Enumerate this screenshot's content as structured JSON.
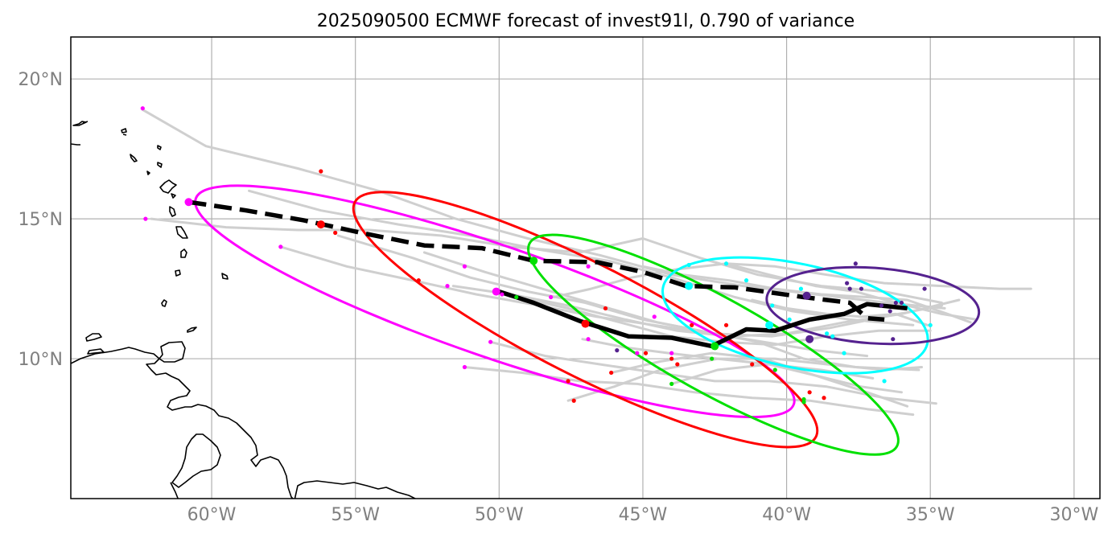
{
  "figure": {
    "title": "2025090500 ECMWF forecast of invest91l, 0.790 of variance"
  },
  "chart_data": {
    "type": "map",
    "title": "2025090500 ECMWF forecast of invest91l, 0.790 of variance",
    "projection": "PlateCarree",
    "extent_lon": [
      -64.9,
      -29.1
    ],
    "extent_lat": [
      5.0,
      21.5
    ],
    "x_ticks": [
      {
        "value": -60,
        "label": "60°W"
      },
      {
        "value": -55,
        "label": "55°W"
      },
      {
        "value": -50,
        "label": "50°W"
      },
      {
        "value": -45,
        "label": "45°W"
      },
      {
        "value": -40,
        "label": "40°W"
      },
      {
        "value": -35,
        "label": "35°W"
      },
      {
        "value": -30,
        "label": "30°W"
      }
    ],
    "y_ticks": [
      {
        "value": 20,
        "label": "20°N"
      },
      {
        "value": 15,
        "label": "15°N"
      },
      {
        "value": 10,
        "label": "10°N"
      }
    ],
    "gridlines": true,
    "colors": {
      "grid": "#b0b0b0",
      "tick_label": "#808080",
      "coast": "#000000",
      "member": "#cfcfcf",
      "mean_track": "#000000"
    },
    "mean_tracks": [
      {
        "name": "mean track (solid)",
        "style": "solid",
        "points": [
          [
            -50.0,
            12.4
          ],
          [
            -48.8,
            12.0
          ],
          [
            -47.2,
            11.35
          ],
          [
            -45.5,
            10.8
          ],
          [
            -44.0,
            10.75
          ],
          [
            -42.6,
            10.45
          ],
          [
            -41.4,
            11.05
          ],
          [
            -40.4,
            11.0
          ],
          [
            -39.2,
            11.4
          ],
          [
            -38.0,
            11.6
          ],
          [
            -37.2,
            11.95
          ],
          [
            -35.8,
            11.8
          ]
        ]
      },
      {
        "name": "mean track (dashed)",
        "style": "dashed",
        "points": [
          [
            -60.8,
            15.6
          ],
          [
            -58.8,
            15.3
          ],
          [
            -56.8,
            14.95
          ],
          [
            -54.8,
            14.5
          ],
          [
            -52.6,
            14.05
          ],
          [
            -50.6,
            13.95
          ],
          [
            -48.8,
            13.5
          ],
          [
            -46.6,
            13.45
          ],
          [
            -45.0,
            13.1
          ],
          [
            -43.5,
            12.6
          ],
          [
            -41.8,
            12.55
          ],
          [
            -39.4,
            12.2
          ],
          [
            -37.8,
            12.0
          ],
          [
            -37.2,
            11.45
          ],
          [
            -36.6,
            11.4
          ]
        ]
      }
    ],
    "ellipses": [
      {
        "color": "#ff00ff",
        "center": [
          -50.15,
          12.05
        ],
        "rx_deg": 11.0,
        "ry_deg": 2.0,
        "angle_deg": -19.0
      },
      {
        "color": "#ff0000",
        "center": [
          -47.0,
          11.4
        ],
        "rx_deg": 9.0,
        "ry_deg": 2.0,
        "angle_deg": -27.0
      },
      {
        "color": "#00e000",
        "center": [
          -42.55,
          10.5
        ],
        "rx_deg": 7.3,
        "ry_deg": 1.7,
        "angle_deg": -29.0
      },
      {
        "color": "#00ffff",
        "center": [
          -39.7,
          11.55
        ],
        "rx_deg": 4.7,
        "ry_deg": 1.85,
        "angle_deg": -12.0
      },
      {
        "color": "#55228f",
        "center": [
          -37.0,
          11.9
        ],
        "rx_deg": 3.7,
        "ry_deg": 1.35,
        "angle_deg": -4.0
      }
    ],
    "ellipse_centers": [
      {
        "color": "#ff00ff",
        "lon": -60.8,
        "lat": 15.6
      },
      {
        "color": "#ff00ff",
        "lon": -50.1,
        "lat": 12.4
      },
      {
        "color": "#ff0000",
        "lon": -56.2,
        "lat": 14.8
      },
      {
        "color": "#ff0000",
        "lon": -47.0,
        "lat": 11.25
      },
      {
        "color": "#00e000",
        "lon": -48.8,
        "lat": 13.5
      },
      {
        "color": "#00e000",
        "lon": -42.5,
        "lat": 10.45
      },
      {
        "color": "#00ffff",
        "lon": -43.4,
        "lat": 12.6
      },
      {
        "color": "#00ffff",
        "lon": -40.6,
        "lat": 11.2
      },
      {
        "color": "#55228f",
        "lon": -39.3,
        "lat": 12.25
      },
      {
        "color": "#55228f",
        "lon": -39.2,
        "lat": 10.7
      }
    ],
    "ensemble_members": [
      [
        [
          -62.4,
          18.9
        ],
        [
          -60.2,
          17.6
        ],
        [
          -57.0,
          16.8
        ],
        [
          -54.2,
          16.0
        ],
        [
          -51.5,
          15.0
        ],
        [
          -49.0,
          14.3
        ],
        [
          -46.5,
          13.7
        ],
        [
          -44.0,
          13.0
        ],
        [
          -41.5,
          12.6
        ],
        [
          -39.0,
          12.3
        ],
        [
          -36.5,
          12.0
        ],
        [
          -34.5,
          11.8
        ]
      ],
      [
        [
          -58.7,
          16.0
        ],
        [
          -56.2,
          15.3
        ],
        [
          -53.5,
          14.8
        ],
        [
          -51.0,
          14.4
        ],
        [
          -48.6,
          13.9
        ],
        [
          -46.2,
          13.5
        ],
        [
          -44.0,
          12.9
        ],
        [
          -41.8,
          12.2
        ],
        [
          -39.8,
          11.7
        ],
        [
          -37.8,
          11.4
        ],
        [
          -35.6,
          11.2
        ]
      ],
      [
        [
          -62.1,
          15.0
        ],
        [
          -59.5,
          14.7
        ],
        [
          -57.0,
          14.6
        ],
        [
          -54.5,
          14.6
        ],
        [
          -52.0,
          14.4
        ],
        [
          -49.6,
          14.0
        ],
        [
          -47.2,
          13.8
        ],
        [
          -45.0,
          14.3
        ],
        [
          -43.0,
          13.6
        ],
        [
          -41.0,
          13.0
        ],
        [
          -38.8,
          12.6
        ],
        [
          -36.6,
          12.4
        ],
        [
          -34.6,
          12.0
        ]
      ],
      [
        [
          -57.6,
          14.0
        ],
        [
          -55.3,
          13.3
        ],
        [
          -53.0,
          12.8
        ],
        [
          -50.8,
          12.3
        ],
        [
          -48.6,
          11.9
        ],
        [
          -46.6,
          11.5
        ],
        [
          -44.6,
          11.2
        ],
        [
          -42.6,
          10.9
        ],
        [
          -40.8,
          10.6
        ],
        [
          -39.0,
          10.3
        ],
        [
          -37.2,
          10.1
        ]
      ],
      [
        [
          -55.6,
          14.4
        ],
        [
          -53.0,
          13.6
        ],
        [
          -51.0,
          12.9
        ],
        [
          -49.0,
          12.4
        ],
        [
          -47.0,
          12.0
        ],
        [
          -45.0,
          11.4
        ],
        [
          -43.0,
          11.0
        ],
        [
          -41.0,
          10.6
        ],
        [
          -39.4,
          10.0
        ],
        [
          -37.6,
          9.7
        ],
        [
          -35.4,
          9.6
        ]
      ],
      [
        [
          -52.6,
          13.8
        ],
        [
          -50.5,
          13.1
        ],
        [
          -48.5,
          12.5
        ],
        [
          -46.5,
          11.9
        ],
        [
          -44.5,
          11.3
        ],
        [
          -42.5,
          10.9
        ],
        [
          -40.5,
          10.8
        ],
        [
          -38.5,
          11.1
        ],
        [
          -36.6,
          11.5
        ],
        [
          -34.6,
          11.9
        ]
      ],
      [
        [
          -51.6,
          12.6
        ],
        [
          -49.6,
          12.3
        ],
        [
          -47.6,
          11.9
        ],
        [
          -45.6,
          11.4
        ],
        [
          -43.8,
          11.0
        ],
        [
          -41.9,
          10.8
        ],
        [
          -40.0,
          10.9
        ],
        [
          -38.0,
          11.3
        ],
        [
          -36.0,
          11.6
        ],
        [
          -34.0,
          12.1
        ]
      ],
      [
        [
          -50.3,
          10.6
        ],
        [
          -48.4,
          10.1
        ],
        [
          -46.5,
          9.8
        ],
        [
          -44.5,
          9.5
        ],
        [
          -42.5,
          9.2
        ],
        [
          -40.6,
          9.2
        ],
        [
          -38.6,
          9.0
        ],
        [
          -36.6,
          8.6
        ],
        [
          -34.8,
          8.4
        ]
      ],
      [
        [
          -51.2,
          9.7
        ],
        [
          -49.2,
          9.5
        ],
        [
          -47.2,
          9.2
        ],
        [
          -45.2,
          9.1
        ],
        [
          -43.2,
          8.8
        ],
        [
          -41.2,
          8.6
        ],
        [
          -39.2,
          8.5
        ],
        [
          -37.2,
          8.2
        ],
        [
          -35.6,
          8.0
        ]
      ],
      [
        [
          -47.6,
          8.5
        ],
        [
          -46.0,
          9.0
        ],
        [
          -44.4,
          9.6
        ],
        [
          -42.4,
          10.0
        ],
        [
          -40.4,
          10.0
        ],
        [
          -38.6,
          9.8
        ],
        [
          -36.6,
          9.6
        ],
        [
          -35.3,
          9.7
        ]
      ],
      [
        [
          -46.1,
          9.5
        ],
        [
          -44.4,
          9.9
        ],
        [
          -42.6,
          10.2
        ],
        [
          -40.8,
          10.0
        ],
        [
          -39.0,
          9.4
        ],
        [
          -37.2,
          8.8
        ],
        [
          -35.8,
          8.3
        ]
      ],
      [
        [
          -49.4,
          12.2
        ],
        [
          -47.6,
          11.8
        ],
        [
          -45.8,
          11.3
        ],
        [
          -44.0,
          10.8
        ],
        [
          -42.2,
          10.6
        ],
        [
          -40.4,
          10.5
        ],
        [
          -38.6,
          10.8
        ],
        [
          -36.8,
          11.0
        ],
        [
          -35.0,
          11.0
        ]
      ],
      [
        [
          -44.0,
          9.1
        ],
        [
          -42.4,
          9.6
        ],
        [
          -40.6,
          9.8
        ],
        [
          -39.0,
          9.4
        ],
        [
          -37.4,
          9.0
        ],
        [
          -36.0,
          8.8
        ]
      ],
      [
        [
          -47.1,
          10.7
        ],
        [
          -45.6,
          10.4
        ],
        [
          -44.1,
          10.2
        ],
        [
          -42.4,
          10.0
        ],
        [
          -40.6,
          9.8
        ],
        [
          -38.8,
          9.6
        ],
        [
          -37.0,
          9.3
        ]
      ],
      [
        [
          -48.1,
          12.2
        ],
        [
          -46.8,
          12.5
        ],
        [
          -45.4,
          12.9
        ],
        [
          -43.8,
          13.2
        ],
        [
          -42.1,
          13.4
        ],
        [
          -40.4,
          13.3
        ],
        [
          -38.6,
          13.0
        ],
        [
          -36.6,
          12.7
        ],
        [
          -34.6,
          12.6
        ],
        [
          -32.6,
          12.5
        ],
        [
          -31.5,
          12.5
        ]
      ],
      [
        [
          -42.1,
          13.4
        ],
        [
          -40.6,
          13.0
        ],
        [
          -39.0,
          12.6
        ],
        [
          -37.6,
          12.4
        ],
        [
          -36.2,
          12.0
        ],
        [
          -34.6,
          11.6
        ],
        [
          -33.4,
          11.4
        ]
      ],
      [
        [
          -45.0,
          13.3
        ],
        [
          -43.6,
          13.0
        ],
        [
          -42.0,
          12.8
        ],
        [
          -40.4,
          12.5
        ],
        [
          -38.8,
          12.3
        ],
        [
          -37.2,
          12.2
        ],
        [
          -35.8,
          12.1
        ],
        [
          -34.4,
          11.6
        ],
        [
          -33.6,
          11.3
        ]
      ],
      [
        [
          -41.2,
          12.1
        ],
        [
          -40.0,
          11.8
        ],
        [
          -38.6,
          11.6
        ],
        [
          -37.4,
          11.5
        ],
        [
          -36.2,
          11.6
        ],
        [
          -35.1,
          11.2
        ]
      ]
    ],
    "member_dots": [
      {
        "color": "#ff00ff",
        "points": [
          [
            -62.4,
            18.95
          ],
          [
            -62.3,
            15.0
          ],
          [
            -57.6,
            14.0
          ],
          [
            -51.2,
            13.3
          ],
          [
            -51.8,
            12.6
          ],
          [
            -49.9,
            12.3
          ],
          [
            -46.9,
            13.3
          ],
          [
            -48.2,
            12.2
          ],
          [
            -50.3,
            10.6
          ],
          [
            -46.9,
            10.7
          ],
          [
            -45.2,
            10.2
          ],
          [
            -44.0,
            10.2
          ],
          [
            -44.6,
            11.5
          ],
          [
            -51.2,
            9.7
          ]
        ]
      },
      {
        "color": "#ff0000",
        "points": [
          [
            -56.2,
            16.7
          ],
          [
            -55.7,
            14.5
          ],
          [
            -52.8,
            12.8
          ],
          [
            -46.3,
            11.8
          ],
          [
            -44.9,
            10.2
          ],
          [
            -44.0,
            10.0
          ],
          [
            -43.8,
            9.8
          ],
          [
            -43.3,
            11.2
          ],
          [
            -42.1,
            11.2
          ],
          [
            -41.2,
            9.8
          ],
          [
            -46.1,
            9.5
          ],
          [
            -47.6,
            9.2
          ],
          [
            -47.4,
            8.5
          ],
          [
            -39.2,
            8.8
          ],
          [
            -38.7,
            8.6
          ]
        ]
      },
      {
        "color": "#00e000",
        "points": [
          [
            -49.4,
            12.2
          ],
          [
            -44.0,
            9.1
          ],
          [
            -42.6,
            10.0
          ],
          [
            -40.4,
            9.6
          ],
          [
            -39.4,
            8.55
          ],
          [
            -39.4,
            8.45
          ]
        ]
      },
      {
        "color": "#00ffff",
        "points": [
          [
            -42.1,
            13.4
          ],
          [
            -43.4,
            13.35
          ],
          [
            -41.4,
            12.8
          ],
          [
            -39.5,
            12.5
          ],
          [
            -40.5,
            11.9
          ],
          [
            -38.6,
            10.9
          ],
          [
            -38.4,
            10.8
          ],
          [
            -38.0,
            10.2
          ],
          [
            -36.6,
            9.2
          ],
          [
            -35.0,
            11.2
          ],
          [
            -39.9,
            11.4
          ]
        ]
      },
      {
        "color": "#55228f",
        "points": [
          [
            -37.6,
            13.4
          ],
          [
            -37.9,
            12.7
          ],
          [
            -37.8,
            12.5
          ],
          [
            -37.4,
            12.5
          ],
          [
            -36.2,
            12.0
          ],
          [
            -36.0,
            12.0
          ],
          [
            -35.2,
            12.5
          ],
          [
            -36.4,
            11.7
          ],
          [
            -36.3,
            10.7
          ],
          [
            -45.9,
            10.3
          ],
          [
            -36.7,
            11.9
          ]
        ]
      }
    ]
  }
}
